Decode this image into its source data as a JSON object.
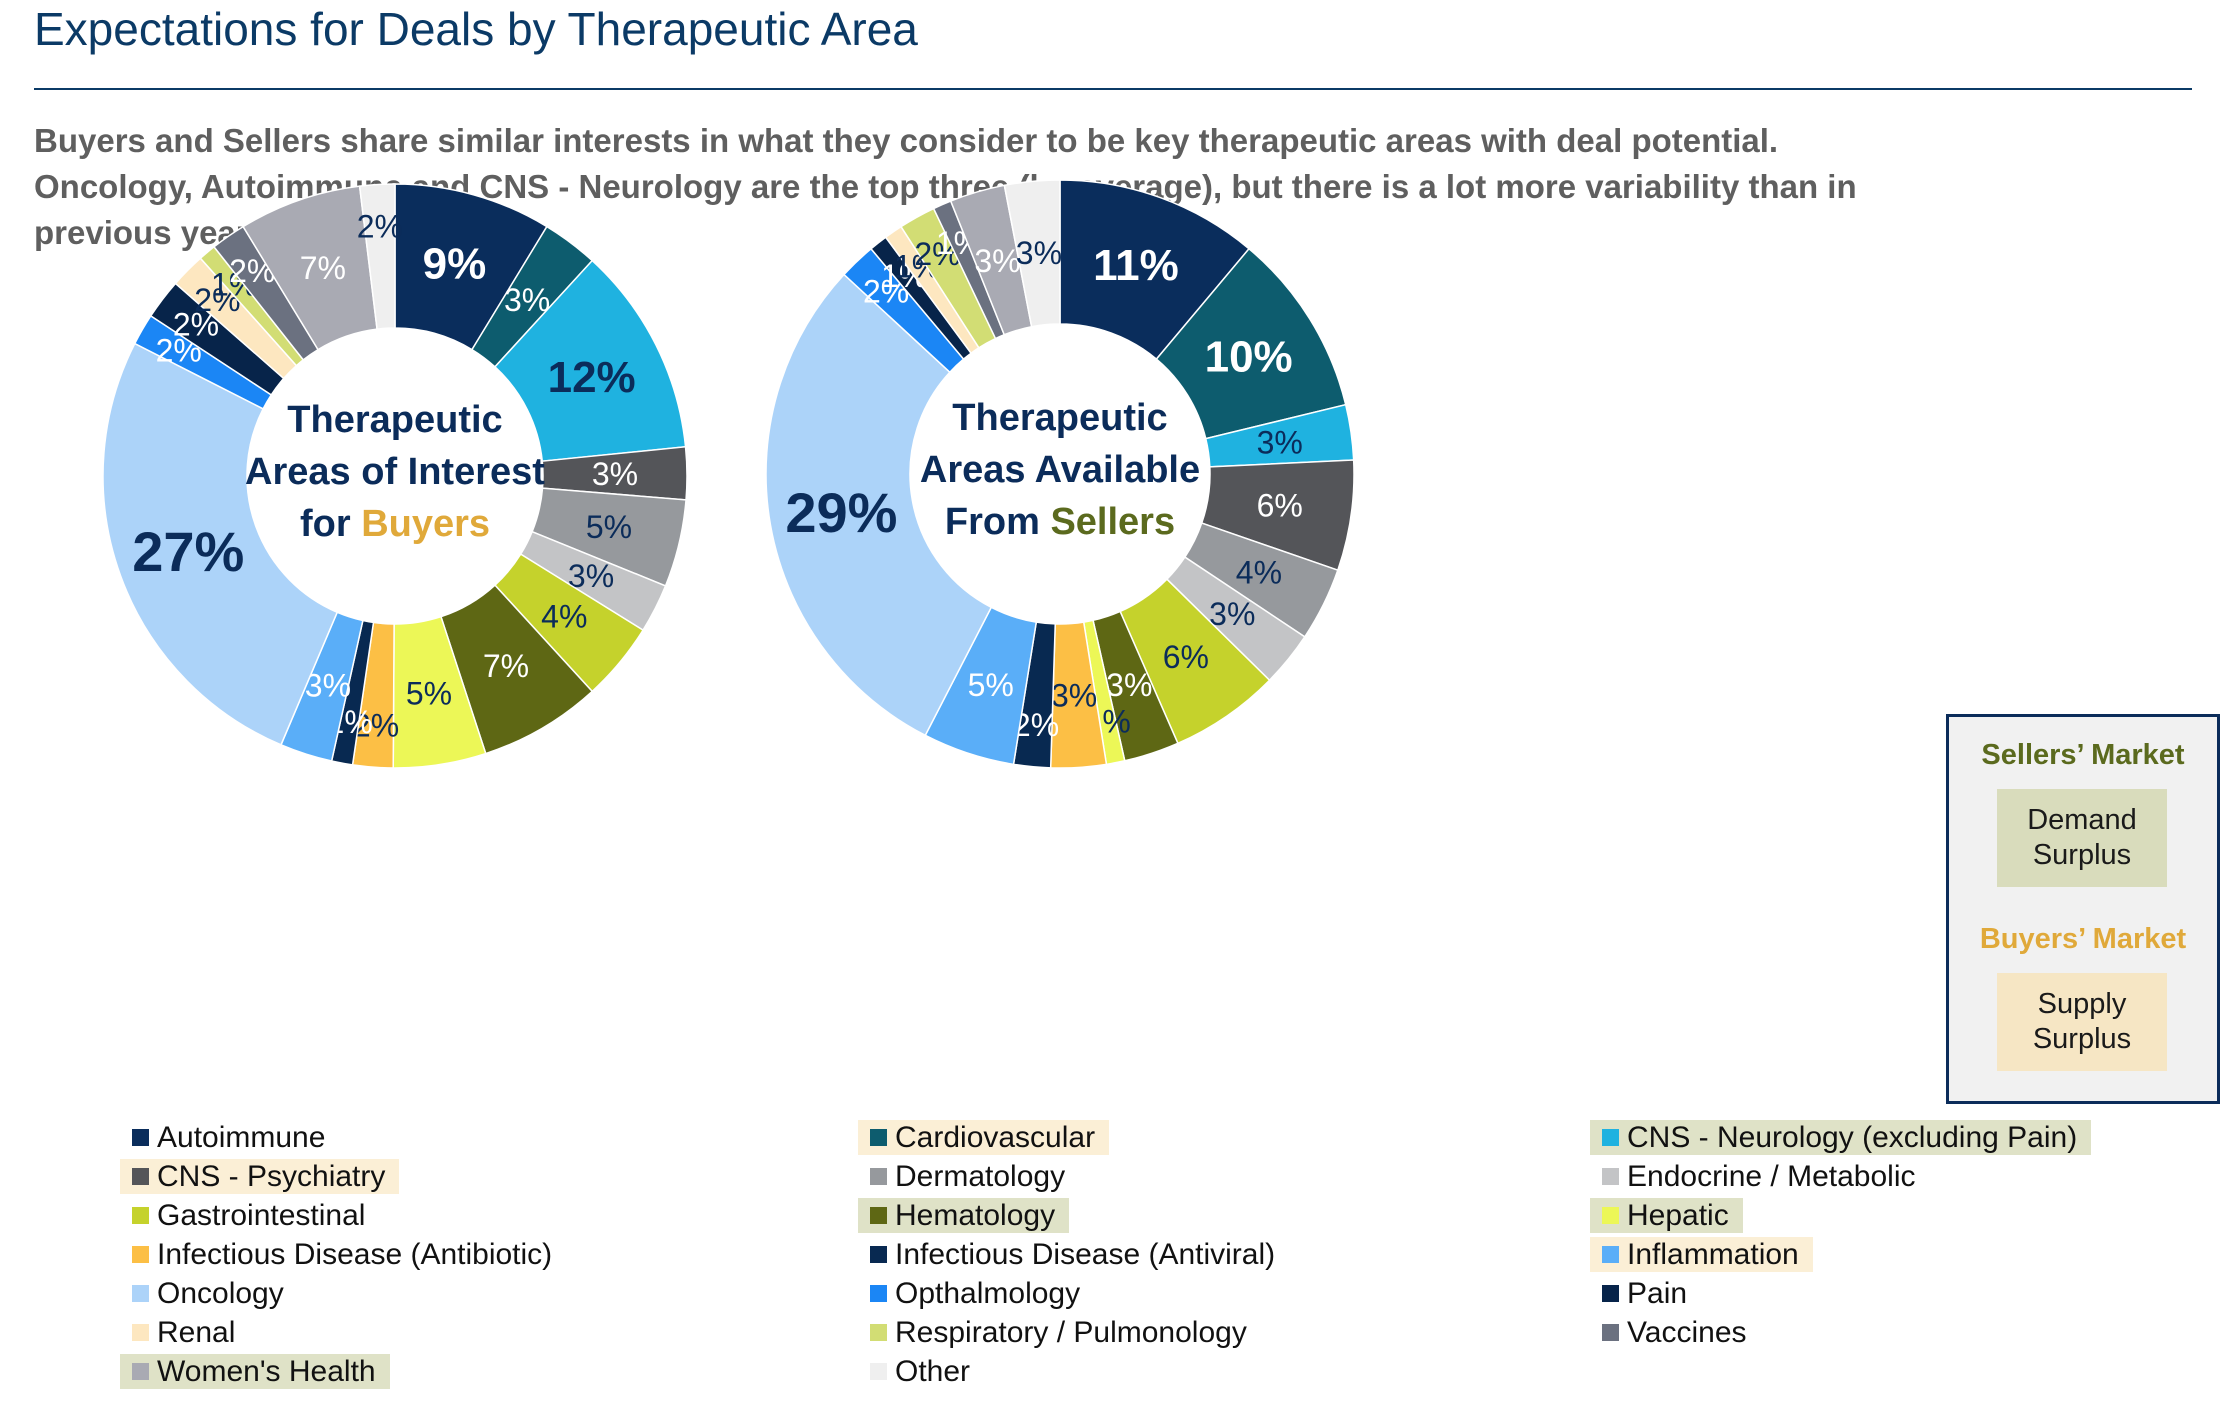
{
  "page": {
    "title": "Expectations for Deals by Therapeutic Area",
    "subtitle_lines": [
      "Buyers and Sellers share similar interests in what they consider to be key therapeutic areas with deal potential.",
      "Oncology, Autoimmune and CNS - Neurology are the top three (by average), but there is a lot more variability than in",
      "previous years."
    ]
  },
  "market_box": {
    "sellers_heading": "Sellers’ Market",
    "sellers_heading_color": "#5b6a1e",
    "sellers_pill_lines": [
      "Demand",
      "Surplus"
    ],
    "sellers_pill_color": "#d9dcbc",
    "buyers_heading": "Buyers’ Market",
    "buyers_heading_color": "#e0a93a",
    "buyers_pill_lines": [
      "Supply",
      "Surplus"
    ],
    "buyers_pill_color": "#f6e6c4"
  },
  "legend": [
    {
      "label": "Autoimmune",
      "color": "#0a2d5c",
      "highlight": null
    },
    {
      "label": "Cardiovascular",
      "color": "#0d5c6e",
      "highlight": "#fbefd6"
    },
    {
      "label": "CNS - Neurology (excluding Pain)",
      "color": "#1fb2e0",
      "highlight": "#dfe2c7"
    },
    {
      "label": "CNS - Psychiatry",
      "color": "#545559",
      "highlight": "#fbefd6"
    },
    {
      "label": "Dermatology",
      "color": "#96999d",
      "highlight": null
    },
    {
      "label": "Endocrine / Metabolic",
      "color": "#c3c4c6",
      "highlight": null
    },
    {
      "label": "Gastrointestinal",
      "color": "#c5d22c",
      "highlight": null
    },
    {
      "label": "Hematology",
      "color": "#5e6714",
      "highlight": "#dfe2c7"
    },
    {
      "label": "Hepatic",
      "color": "#ecf757",
      "highlight": "#dfe2c7"
    },
    {
      "label": "Infectious Disease (Antibiotic)",
      "color": "#fcbf45",
      "highlight": null
    },
    {
      "label": "Infectious Disease (Antiviral)",
      "color": "#082951",
      "highlight": null
    },
    {
      "label": "Inflammation",
      "color": "#5aaef8",
      "highlight": "#fbefd6"
    },
    {
      "label": "Oncology",
      "color": "#acd3f9",
      "highlight": null
    },
    {
      "label": "Opthalmology",
      "color": "#1b86f5",
      "highlight": null
    },
    {
      "label": "Pain",
      "color": "#07244a",
      "highlight": null
    },
    {
      "label": "Renal",
      "color": "#fde7c0",
      "highlight": null
    },
    {
      "label": "Respiratory / Pulmonology",
      "color": "#d2dd74",
      "highlight": null
    },
    {
      "label": "Vaccines",
      "color": "#6b7180",
      "highlight": null
    },
    {
      "label": "Women's Health",
      "color": "#a9aab3",
      "highlight": "#dfe2c7"
    },
    {
      "label": "Other",
      "color": "#efefef",
      "highlight": null
    }
  ],
  "chart_data": [
    {
      "type": "pie",
      "donut": true,
      "center_title": {
        "lines": [
          "Therapeutic",
          "Areas of Interest",
          "for "
        ],
        "highlight": "Buyers",
        "highlight_color": "#e0a93a"
      },
      "categories": [
        "Autoimmune",
        "Cardiovascular",
        "CNS - Neurology (excluding Pain)",
        "CNS - Psychiatry",
        "Dermatology",
        "Endocrine / Metabolic",
        "Gastrointestinal",
        "Hematology",
        "Hepatic",
        "Infectious Disease (Antibiotic)",
        "Infectious Disease (Antiviral)",
        "Inflammation",
        "Oncology",
        "Opthalmology",
        "Pain",
        "Renal",
        "Respiratory / Pulmonology",
        "Vaccines",
        "Women's Health",
        "Other"
      ],
      "values": [
        9.0,
        3.2,
        12.0,
        3.0,
        5.0,
        2.8,
        4.5,
        7.0,
        5.3,
        2.3,
        1.2,
        3.0,
        27.0,
        1.8,
        2.3,
        2.0,
        1.0,
        2.0,
        7.0,
        2.0
      ],
      "data_labels": [
        "9%",
        "3%",
        "12%",
        "3%",
        "5%",
        "3%",
        "4%",
        "7%",
        "5%",
        "2%",
        "1%",
        "3%",
        "27%",
        "2%",
        "2%",
        "2%",
        "1%",
        "2%",
        "7%",
        "2%"
      ]
    },
    {
      "type": "pie",
      "donut": true,
      "center_title": {
        "lines": [
          "Therapeutic",
          "Areas Available",
          "From "
        ],
        "highlight": "Sellers",
        "highlight_color": "#5b6a1e"
      },
      "categories": [
        "Autoimmune",
        "Cardiovascular",
        "CNS - Neurology (excluding Pain)",
        "CNS - Psychiatry",
        "Dermatology",
        "Endocrine / Metabolic",
        "Gastrointestinal",
        "Hematology",
        "Hepatic",
        "Infectious Disease (Antibiotic)",
        "Infectious Disease (Antiviral)",
        "Inflammation",
        "Oncology",
        "Opthalmology",
        "Pain",
        "Renal",
        "Respiratory / Pulmonology",
        "Vaccines",
        "Women's Health",
        "Other"
      ],
      "values": [
        11.0,
        10.0,
        3.0,
        6.0,
        4.0,
        3.0,
        6.0,
        3.0,
        1.0,
        3.0,
        2.0,
        5.0,
        29.0,
        2.0,
        1.0,
        1.0,
        2.0,
        1.0,
        3.0,
        3.0
      ],
      "data_labels": [
        "11%",
        "10%",
        "3%",
        "6%",
        "4%",
        "3%",
        "6%",
        "3%",
        "1%",
        "3%",
        "2%",
        "5%",
        "29%",
        "2%",
        "1%",
        "1%",
        "2%",
        "1%",
        "3%",
        "3%"
      ]
    }
  ]
}
